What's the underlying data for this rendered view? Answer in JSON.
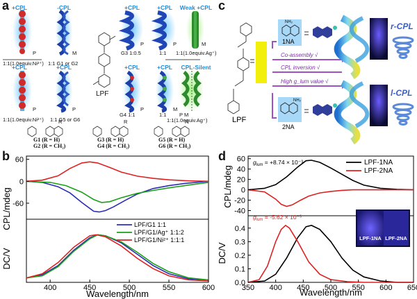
{
  "panels": {
    "a": "a",
    "b": "b",
    "c": "c",
    "d": "d"
  },
  "panel_a": {
    "row1": [
      {
        "tag": "+CPL",
        "hand": "P",
        "caption": "1:1(1.0equiv.Ni²⁺)"
      },
      {
        "tag": "-CPL",
        "hand": "M",
        "caption": "1:1 G1 or G2"
      },
      {
        "tag": "+CPL",
        "hand": "P",
        "caption": "G3 1:0.5"
      },
      {
        "tag": "+CPL",
        "hand": "P",
        "caption": "1:1"
      },
      {
        "tag": "Weak +CPL",
        "hand": "M",
        "caption": "1:1(1.0equiv.Ag⁺)"
      }
    ],
    "row2": [
      {
        "tag": "+CPL",
        "hand": "P",
        "caption": "1:1(1.0equiv.Ni²⁺)"
      },
      {
        "tag": "+CPL",
        "hand": "P",
        "caption": "1:1 G5 or G6"
      },
      {
        "tag": "+CPL",
        "hand": "P",
        "caption": "G4 1:1"
      },
      {
        "tag": "+CPL",
        "hand": "M",
        "caption": "1:1"
      },
      {
        "tag": "CPL-Silent",
        "hand": "P M",
        "caption": "1:1(1.0equiv.Ag⁺)"
      }
    ],
    "lpf_label": "LPF",
    "guests": [
      {
        "line1": "G1 (R = H)",
        "line2": "G2 (R = CH₂)"
      },
      {
        "line1": "G3 (R = H)",
        "line2": "G4 (R = CH₂)"
      },
      {
        "line1": "G5 (R = H)",
        "line2": "G6 (R = CH₂)"
      }
    ],
    "r_label": "R"
  },
  "panel_c": {
    "lpf_label": "LPF",
    "na1": "1NA",
    "na2": "2NA",
    "nh2": "NH₂",
    "arrow_texts": [
      "Co-assembly √",
      "CPL inversion √",
      "High g_lum value √"
    ],
    "r_cpl": "r-CPL",
    "l_cpl": "l-CPL"
  },
  "chart_data": [
    {
      "id": "b-cpl",
      "type": "line",
      "xlabel": "Wavelength/nm",
      "ylabel": "CPL/mdeg",
      "xlim": [
        370,
        600
      ],
      "ylim": [
        -100,
        65
      ],
      "xticks": [
        400,
        450,
        500,
        550,
        600
      ],
      "yticks": [
        60,
        0,
        -60
      ],
      "series": [
        {
          "name": "LPF/G1 1:1",
          "color": "#2b2bb5",
          "x": [
            370,
            390,
            410,
            425,
            440,
            455,
            462,
            470,
            480,
            495,
            510,
            530,
            550,
            570,
            590,
            600
          ],
          "y": [
            0,
            -3,
            -15,
            -32,
            -58,
            -82,
            -84,
            -80,
            -70,
            -52,
            -35,
            -20,
            -12,
            -6,
            -2,
            0
          ]
        },
        {
          "name": "LPF/G1/Ag⁺ 1:1:2",
          "color": "#1aa01a",
          "x": [
            370,
            400,
            420,
            440,
            455,
            465,
            475,
            490,
            510,
            530,
            550,
            570,
            590,
            600
          ],
          "y": [
            0,
            -3,
            -12,
            -30,
            -50,
            -58,
            -56,
            -45,
            -33,
            -25,
            -18,
            -12,
            -6,
            -3
          ]
        },
        {
          "name": "LPF/G1/Ni²⁺ 1:1:1",
          "color": "#e02020",
          "x": [
            370,
            390,
            410,
            425,
            440,
            450,
            460,
            475,
            490,
            510,
            530,
            550,
            575,
            600
          ],
          "y": [
            0,
            3,
            15,
            35,
            50,
            53,
            50,
            38,
            25,
            14,
            8,
            4,
            1,
            0
          ]
        }
      ]
    },
    {
      "id": "b-dc",
      "type": "line",
      "xlabel": "Wavelength/nm",
      "ylabel": "DC/V",
      "xlim": [
        370,
        600
      ],
      "ylim": [
        0,
        0.5
      ],
      "xticks": [
        400,
        450,
        500,
        550,
        600
      ],
      "series": [
        {
          "name": "LPF/G1 1:1",
          "color": "#2b2bb5",
          "x": [
            370,
            390,
            410,
            430,
            450,
            460,
            470,
            490,
            510,
            530,
            550,
            575,
            600
          ],
          "y": [
            0.03,
            0.06,
            0.15,
            0.3,
            0.42,
            0.45,
            0.44,
            0.37,
            0.26,
            0.15,
            0.07,
            0.02,
            0.01
          ]
        },
        {
          "name": "LPF/G1/Ag⁺ 1:1:2",
          "color": "#1aa01a",
          "x": [
            370,
            390,
            410,
            430,
            450,
            460,
            470,
            490,
            510,
            530,
            550,
            575,
            600
          ],
          "y": [
            0.03,
            0.05,
            0.14,
            0.29,
            0.41,
            0.45,
            0.44,
            0.38,
            0.28,
            0.17,
            0.09,
            0.03,
            0.01
          ]
        },
        {
          "name": "LPF/G1/Ni²⁺ 1:1:1",
          "color": "#e02020",
          "x": [
            370,
            390,
            410,
            430,
            450,
            458,
            470,
            490,
            510,
            530,
            550,
            575,
            600
          ],
          "y": [
            0.03,
            0.07,
            0.18,
            0.33,
            0.44,
            0.45,
            0.43,
            0.34,
            0.22,
            0.12,
            0.05,
            0.01,
            0.0
          ]
        }
      ]
    },
    {
      "id": "d-cpl",
      "type": "line",
      "xlabel": "Wavelength/nm",
      "ylabel": "CPL/mdeg",
      "xlim": [
        350,
        650
      ],
      "ylim": [
        -50,
        65
      ],
      "yticks": [
        60,
        40,
        20,
        0,
        -20,
        -40
      ],
      "annotations": [
        {
          "pre": "g",
          "sub": "lum",
          "text": " = +8.74 × 10⁻³",
          "color": "#000000"
        },
        {
          "pre": "g",
          "sub": "lum",
          "text": " = -5.62 × 10⁻³",
          "color": "#e02020"
        }
      ],
      "series": [
        {
          "name": "LPF-1NA",
          "color": "#000000",
          "x": [
            350,
            380,
            400,
            420,
            440,
            455,
            465,
            480,
            500,
            520,
            540,
            560,
            590,
            620,
            650
          ],
          "y": [
            0,
            3,
            10,
            25,
            44,
            56,
            57,
            53,
            42,
            30,
            18,
            9,
            3,
            1,
            0
          ]
        },
        {
          "name": "LPF-2NA",
          "color": "#e02020",
          "x": [
            350,
            380,
            400,
            410,
            420,
            430,
            445,
            460,
            480,
            500,
            520,
            540,
            570,
            600,
            650
          ],
          "y": [
            0,
            -4,
            -18,
            -28,
            -32,
            -29,
            -20,
            -12,
            -6,
            -3,
            -1,
            0,
            0,
            0,
            0
          ]
        }
      ]
    },
    {
      "id": "d-dc",
      "type": "line",
      "xlabel": "Wavelength/nm",
      "ylabel": "DC/V",
      "xlim": [
        350,
        650
      ],
      "ylim": [
        0,
        0.45
      ],
      "xticks": [
        350,
        400,
        450,
        500,
        550,
        600,
        650
      ],
      "yticks": [
        0.0,
        0.1,
        0.2,
        0.3,
        0.4
      ],
      "inset_labels": [
        "LPF-1NA",
        "LPF-2NA"
      ],
      "series": [
        {
          "name": "LPF-1NA",
          "color": "#000000",
          "x": [
            350,
            380,
            400,
            420,
            440,
            455,
            465,
            480,
            500,
            520,
            540,
            560,
            590,
            620,
            650
          ],
          "y": [
            0,
            0.01,
            0.06,
            0.18,
            0.33,
            0.41,
            0.42,
            0.39,
            0.3,
            0.18,
            0.09,
            0.04,
            0.01,
            0,
            0
          ]
        },
        {
          "name": "LPF-2NA",
          "color": "#e02020",
          "x": [
            350,
            370,
            385,
            400,
            410,
            418,
            425,
            440,
            460,
            480,
            500,
            530,
            560,
            600,
            650
          ],
          "y": [
            0,
            0.02,
            0.12,
            0.3,
            0.39,
            0.42,
            0.4,
            0.3,
            0.15,
            0.06,
            0.02,
            0.005,
            0,
            0,
            0
          ]
        }
      ]
    }
  ]
}
